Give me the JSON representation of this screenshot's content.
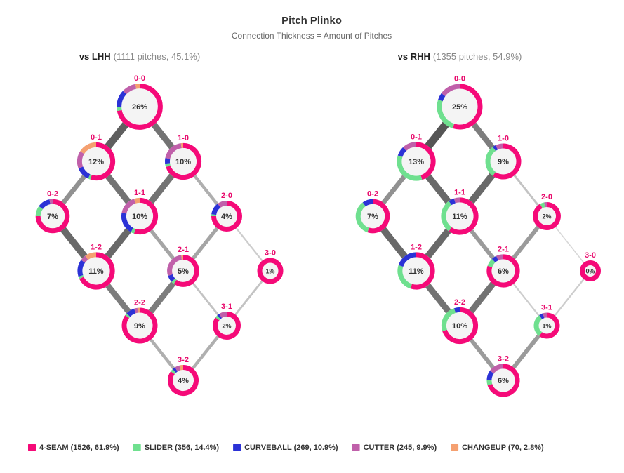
{
  "title": "Pitch Plinko",
  "subtitle": "Connection Thickness = Amount of Pitches",
  "pitch_types": [
    {
      "name": "4-SEAM (1526, 61.9%)",
      "color": "#f50a78"
    },
    {
      "name": "SLIDER (356, 14.4%)",
      "color": "#6fe08f"
    },
    {
      "name": "CURVEBALL (269, 10.9%)",
      "color": "#2b32d6"
    },
    {
      "name": "CUTTER (245, 9.9%)",
      "color": "#c060aa"
    },
    {
      "name": "CHANGEUP (70, 2.8%)",
      "color": "#f5a070"
    }
  ],
  "panels": [
    {
      "title": "vs LHH",
      "subtitle": "(1111 pitches, 45.1%)",
      "nodes": [
        {
          "count": "0-0",
          "pct": {
            "value": 26,
            "label": "26%"
          },
          "mix": [
            72,
            3,
            12,
            10,
            3
          ]
        },
        {
          "count": "0-1",
          "pct": {
            "value": 12,
            "label": "12%"
          },
          "mix": [
            55,
            2,
            12,
            15,
            16
          ]
        },
        {
          "count": "1-0",
          "pct": {
            "value": 10,
            "label": "10%"
          },
          "mix": [
            70,
            3,
            5,
            20,
            2
          ]
        },
        {
          "count": "0-2",
          "pct": {
            "value": 7,
            "label": "7%"
          },
          "mix": [
            75,
            10,
            12,
            3,
            0
          ]
        },
        {
          "count": "1-1",
          "pct": {
            "value": 10,
            "label": "10%"
          },
          "mix": [
            55,
            3,
            20,
            17,
            5
          ]
        },
        {
          "count": "2-0",
          "pct": {
            "value": 4,
            "label": "4%"
          },
          "mix": [
            75,
            2,
            13,
            10,
            0
          ]
        },
        {
          "count": "1-2",
          "pct": {
            "value": 11,
            "label": "11%"
          },
          "mix": [
            68,
            2,
            15,
            5,
            10
          ]
        },
        {
          "count": "2-1",
          "pct": {
            "value": 5,
            "label": "5%"
          },
          "mix": [
            60,
            3,
            7,
            28,
            2
          ]
        },
        {
          "count": "3-0",
          "pct": {
            "value": 1,
            "label": "1%"
          },
          "mix": [
            100,
            0,
            0,
            0,
            0
          ]
        },
        {
          "count": "2-2",
          "pct": {
            "value": 9,
            "label": "9%"
          },
          "mix": [
            85,
            2,
            8,
            3,
            2
          ]
        },
        {
          "count": "3-1",
          "pct": {
            "value": 2,
            "label": "2%"
          },
          "mix": [
            85,
            3,
            3,
            9,
            0
          ]
        },
        {
          "count": "3-2",
          "pct": {
            "value": 4,
            "label": "4%"
          },
          "mix": [
            85,
            3,
            3,
            5,
            4
          ]
        }
      ]
    },
    {
      "title": "vs RHH",
      "subtitle": "(1355 pitches, 54.9%)",
      "nodes": [
        {
          "count": "0-0",
          "pct": {
            "value": 25,
            "label": "25%"
          },
          "mix": [
            55,
            25,
            5,
            15,
            0
          ]
        },
        {
          "count": "0-1",
          "pct": {
            "value": 13,
            "label": "13%"
          },
          "mix": [
            45,
            35,
            8,
            12,
            0
          ]
        },
        {
          "count": "1-0",
          "pct": {
            "value": 9,
            "label": "9%"
          },
          "mix": [
            60,
            30,
            3,
            7,
            0
          ]
        },
        {
          "count": "0-2",
          "pct": {
            "value": 7,
            "label": "7%"
          },
          "mix": [
            55,
            35,
            10,
            0,
            0
          ]
        },
        {
          "count": "1-1",
          "pct": {
            "value": 11,
            "label": "11%"
          },
          "mix": [
            60,
            30,
            5,
            5,
            0
          ]
        },
        {
          "count": "2-0",
          "pct": {
            "value": 2,
            "label": "2%"
          },
          "mix": [
            92,
            5,
            0,
            3,
            0
          ]
        },
        {
          "count": "1-2",
          "pct": {
            "value": 11,
            "label": "11%"
          },
          "mix": [
            55,
            25,
            20,
            0,
            0
          ]
        },
        {
          "count": "2-1",
          "pct": {
            "value": 6,
            "label": "6%"
          },
          "mix": [
            80,
            8,
            5,
            7,
            0
          ]
        },
        {
          "count": "3-0",
          "pct": {
            "value": 0,
            "label": "0%"
          },
          "mix": [
            100,
            0,
            0,
            0,
            0
          ]
        },
        {
          "count": "2-2",
          "pct": {
            "value": 10,
            "label": "10%"
          },
          "mix": [
            70,
            25,
            5,
            0,
            0
          ]
        },
        {
          "count": "3-1",
          "pct": {
            "value": 1,
            "label": "1%"
          },
          "mix": [
            60,
            30,
            5,
            5,
            0
          ]
        },
        {
          "count": "3-2",
          "pct": {
            "value": 6,
            "label": "6%"
          },
          "mix": [
            70,
            5,
            10,
            15,
            0
          ]
        }
      ]
    }
  ]
}
